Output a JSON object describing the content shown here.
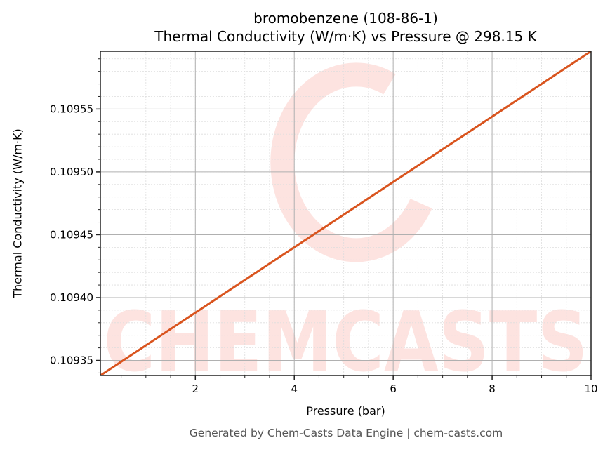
{
  "header": {
    "title_line1": "bromobenzene (108-86-1)",
    "title_line2": "Thermal Conductivity (W/m·K) vs Pressure @ 298.15 K"
  },
  "footer": {
    "text": "Generated by Chem-Casts Data Engine | chem-casts.com"
  },
  "watermark": {
    "text": "CHEMCASTS",
    "color": "#fde3e0"
  },
  "colors": {
    "line": "#d9541e",
    "major_grid": "#b0b0b0",
    "minor_grid": "#dddddd",
    "axis": "#222222"
  },
  "chart_data": {
    "type": "line",
    "title": "bromobenzene (108-86-1)\nThermal Conductivity (W/m·K) vs Pressure @ 298.15 K",
    "xlabel": "Pressure (bar)",
    "ylabel": "Thermal Conductivity (W/m·K)",
    "xlim": [
      0.08,
      10
    ],
    "ylim": [
      0.109338,
      0.109596
    ],
    "x_ticks": [
      2,
      4,
      6,
      8,
      10
    ],
    "x_tick_labels": [
      "2",
      "4",
      "6",
      "8",
      "10"
    ],
    "y_ticks": [
      0.10935,
      0.1094,
      0.10945,
      0.1095,
      0.10955
    ],
    "y_tick_labels": [
      "0.10935",
      "0.10940",
      "0.10945",
      "0.10950",
      "0.10955"
    ],
    "grid": true,
    "legend": null,
    "series": [
      {
        "name": "bromobenzene",
        "x": [
          0.08,
          2,
          4,
          6,
          8,
          10
        ],
        "values": [
          0.109338,
          0.109388,
          0.10944,
          0.109492,
          0.109544,
          0.109596
        ]
      }
    ]
  }
}
